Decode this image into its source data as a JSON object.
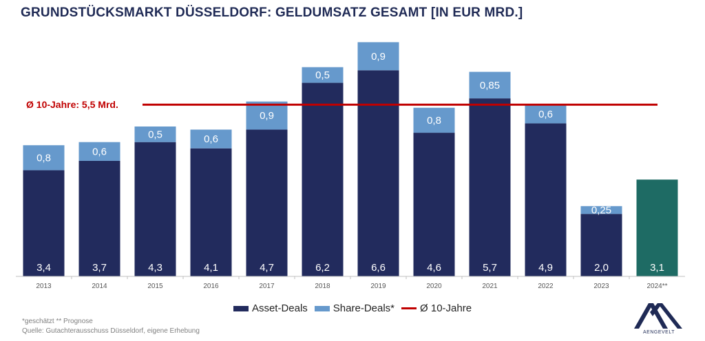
{
  "title": "GRUNDSTÜCKSMARKT DÜSSELDORF: GELDUMSATZ GESAMT [IN EUR MRD.]",
  "colors": {
    "asset": "#222b5d",
    "share": "#6699cc",
    "forecast": "#1e6b64",
    "avg_line": "#c00000",
    "axis_text": "#555555",
    "title": "#1f2a55"
  },
  "chart_data": {
    "type": "bar",
    "stacked": true,
    "categories": [
      "2013",
      "2014",
      "2015",
      "2016",
      "2017",
      "2018",
      "2019",
      "2020",
      "2021",
      "2022",
      "2023",
      "2024**"
    ],
    "series": [
      {
        "name": "Asset-Deals",
        "values": [
          3.4,
          3.7,
          4.3,
          4.1,
          4.7,
          6.2,
          6.6,
          4.6,
          5.7,
          4.9,
          2.0,
          3.1
        ],
        "labels": [
          "3,4",
          "3,7",
          "4,3",
          "4,1",
          "4,7",
          "6,2",
          "6,6",
          "4,6",
          "5,7",
          "4,9",
          "2,0",
          "3,1"
        ]
      },
      {
        "name": "Share-Deals*",
        "values": [
          0.8,
          0.6,
          0.5,
          0.6,
          0.9,
          0.5,
          0.9,
          0.8,
          0.85,
          0.6,
          0.25,
          null
        ],
        "labels": [
          "0,8",
          "0,6",
          "0,5",
          "0,6",
          "0,9",
          "0,5",
          "0,9",
          "0,8",
          "0,85",
          "0,6",
          "0,25",
          ""
        ]
      }
    ],
    "forecast_index": 11,
    "average": {
      "name": "Ø 10-Jahre",
      "value": 5.5,
      "label": "Ø 10-Jahre: 5,5 Mrd."
    },
    "ylim": [
      0,
      7.75
    ],
    "grid": false,
    "legend_position": "bottom"
  },
  "legend": {
    "asset": "Asset-Deals",
    "share": "Share-Deals*",
    "avg": "Ø 10-Jahre"
  },
  "footnotes": {
    "line1": "*geschätzt  ** Prognose",
    "line2": "Quelle: Gutachterausschuss Düsseldorf, eigene Erhebung"
  },
  "logo": {
    "text": "AENGEVELT"
  }
}
